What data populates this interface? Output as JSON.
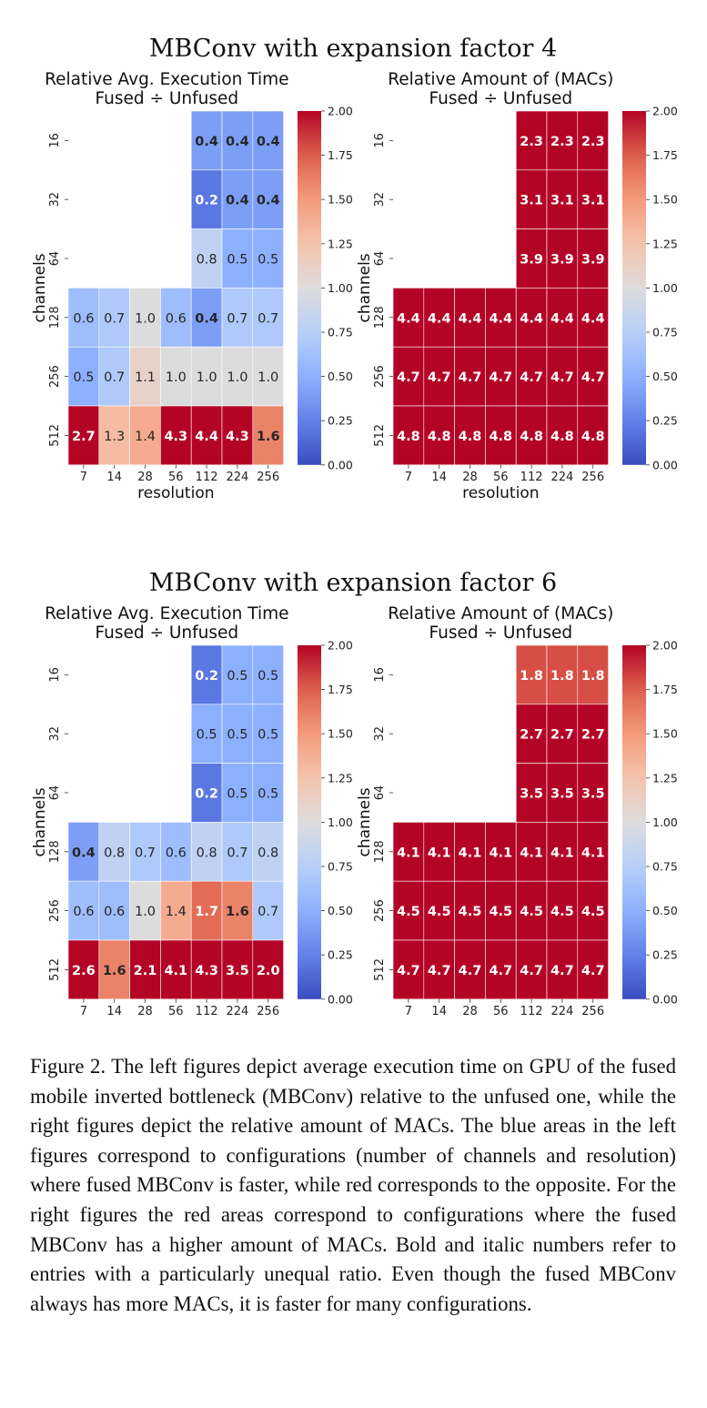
{
  "sections": [
    {
      "title": "MBConv with expansion factor 4"
    },
    {
      "title": "MBConv with expansion factor 6"
    }
  ],
  "chart_data": [
    {
      "type": "heatmap",
      "title": "Relative Avg. Execution Time\nFused ÷ Unfused",
      "section": 0,
      "xlabel": "resolution",
      "ylabel": "channels",
      "x_categories": [
        "7",
        "14",
        "28",
        "56",
        "112",
        "224",
        "256"
      ],
      "y_categories": [
        "16",
        "32",
        "64",
        "128",
        "256",
        "512"
      ],
      "values": [
        [
          null,
          null,
          null,
          null,
          0.4,
          0.4,
          0.4
        ],
        [
          null,
          null,
          null,
          null,
          0.2,
          0.4,
          0.4
        ],
        [
          null,
          null,
          null,
          null,
          0.8,
          0.5,
          0.5
        ],
        [
          0.6,
          0.7,
          1.0,
          0.6,
          0.4,
          0.7,
          0.7
        ],
        [
          0.5,
          0.7,
          1.1,
          1.0,
          1.0,
          1.0,
          1.0
        ],
        [
          2.7,
          1.3,
          1.4,
          4.3,
          4.4,
          4.3,
          1.6
        ]
      ],
      "bold": [
        [
          false,
          false,
          false,
          false,
          true,
          true,
          true
        ],
        [
          false,
          false,
          false,
          false,
          true,
          true,
          true
        ],
        [
          false,
          false,
          false,
          false,
          false,
          false,
          false
        ],
        [
          false,
          false,
          false,
          false,
          true,
          false,
          false
        ],
        [
          false,
          false,
          false,
          false,
          false,
          false,
          false
        ],
        [
          true,
          false,
          false,
          true,
          true,
          true,
          true
        ]
      ],
      "colorbar": {
        "min": 0.0,
        "max": 2.0,
        "ticks": [
          "0.00",
          "0.25",
          "0.50",
          "0.75",
          "1.00",
          "1.25",
          "1.50",
          "1.75",
          "2.00"
        ]
      },
      "colormap": "coolwarm"
    },
    {
      "type": "heatmap",
      "title": "Relative Amount of (MACs)\nFused ÷ Unfused",
      "section": 0,
      "xlabel": "resolution",
      "ylabel": "channels",
      "x_categories": [
        "7",
        "14",
        "28",
        "56",
        "112",
        "224",
        "256"
      ],
      "y_categories": [
        "16",
        "32",
        "64",
        "128",
        "256",
        "512"
      ],
      "values": [
        [
          null,
          null,
          null,
          null,
          2.3,
          2.3,
          2.3
        ],
        [
          null,
          null,
          null,
          null,
          3.1,
          3.1,
          3.1
        ],
        [
          null,
          null,
          null,
          null,
          3.9,
          3.9,
          3.9
        ],
        [
          4.4,
          4.4,
          4.4,
          4.4,
          4.4,
          4.4,
          4.4
        ],
        [
          4.7,
          4.7,
          4.7,
          4.7,
          4.7,
          4.7,
          4.7
        ],
        [
          4.8,
          4.8,
          4.8,
          4.8,
          4.8,
          4.8,
          4.8
        ]
      ],
      "bold": [
        [
          false,
          false,
          false,
          false,
          true,
          true,
          true
        ],
        [
          false,
          false,
          false,
          false,
          true,
          true,
          true
        ],
        [
          false,
          false,
          false,
          false,
          true,
          true,
          true
        ],
        [
          true,
          true,
          true,
          true,
          true,
          true,
          true
        ],
        [
          true,
          true,
          true,
          true,
          true,
          true,
          true
        ],
        [
          true,
          true,
          true,
          true,
          true,
          true,
          true
        ]
      ],
      "colorbar": {
        "min": 0.0,
        "max": 2.0,
        "ticks": [
          "0.00",
          "0.25",
          "0.50",
          "0.75",
          "1.00",
          "1.25",
          "1.50",
          "1.75",
          "2.00"
        ]
      },
      "colormap": "coolwarm"
    },
    {
      "type": "heatmap",
      "title": "Relative Avg. Execution Time\nFused ÷ Unfused",
      "section": 1,
      "xlabel": "resolution",
      "ylabel": "channels",
      "x_categories": [
        "7",
        "14",
        "28",
        "56",
        "112",
        "224",
        "256"
      ],
      "y_categories": [
        "16",
        "32",
        "64",
        "128",
        "256",
        "512"
      ],
      "values": [
        [
          null,
          null,
          null,
          null,
          0.2,
          0.5,
          0.5
        ],
        [
          null,
          null,
          null,
          null,
          0.5,
          0.5,
          0.5
        ],
        [
          null,
          null,
          null,
          null,
          0.2,
          0.5,
          0.5
        ],
        [
          0.4,
          0.8,
          0.7,
          0.6,
          0.8,
          0.7,
          0.8
        ],
        [
          0.6,
          0.6,
          1.0,
          1.4,
          1.7,
          1.6,
          0.7
        ],
        [
          2.6,
          1.6,
          2.1,
          4.1,
          4.3,
          3.5,
          2.0
        ]
      ],
      "bold": [
        [
          false,
          false,
          false,
          false,
          true,
          false,
          false
        ],
        [
          false,
          false,
          false,
          false,
          false,
          false,
          false
        ],
        [
          false,
          false,
          false,
          false,
          true,
          false,
          false
        ],
        [
          true,
          false,
          false,
          false,
          false,
          false,
          false
        ],
        [
          false,
          false,
          false,
          false,
          true,
          true,
          false
        ],
        [
          true,
          true,
          true,
          true,
          true,
          true,
          true
        ]
      ],
      "colorbar": {
        "min": 0.0,
        "max": 2.0,
        "ticks": [
          "0.00",
          "0.25",
          "0.50",
          "0.75",
          "1.00",
          "1.25",
          "1.50",
          "1.75",
          "2.00"
        ]
      },
      "colormap": "coolwarm"
    },
    {
      "type": "heatmap",
      "title": "Relative Amount of (MACs)\nFused ÷ Unfused",
      "section": 1,
      "xlabel": "resolution",
      "ylabel": "channels",
      "x_categories": [
        "7",
        "14",
        "28",
        "56",
        "112",
        "224",
        "256"
      ],
      "y_categories": [
        "16",
        "32",
        "64",
        "128",
        "256",
        "512"
      ],
      "values": [
        [
          null,
          null,
          null,
          null,
          1.8,
          1.8,
          1.8
        ],
        [
          null,
          null,
          null,
          null,
          2.7,
          2.7,
          2.7
        ],
        [
          null,
          null,
          null,
          null,
          3.5,
          3.5,
          3.5
        ],
        [
          4.1,
          4.1,
          4.1,
          4.1,
          4.1,
          4.1,
          4.1
        ],
        [
          4.5,
          4.5,
          4.5,
          4.5,
          4.5,
          4.5,
          4.5
        ],
        [
          4.7,
          4.7,
          4.7,
          4.7,
          4.7,
          4.7,
          4.7
        ]
      ],
      "bold": [
        [
          false,
          false,
          false,
          false,
          true,
          true,
          true
        ],
        [
          false,
          false,
          false,
          false,
          true,
          true,
          true
        ],
        [
          false,
          false,
          false,
          false,
          true,
          true,
          true
        ],
        [
          true,
          true,
          true,
          true,
          true,
          true,
          true
        ],
        [
          true,
          true,
          true,
          true,
          true,
          true,
          true
        ],
        [
          true,
          true,
          true,
          true,
          true,
          true,
          true
        ]
      ],
      "colorbar": {
        "min": 0.0,
        "max": 2.0,
        "ticks": [
          "0.00",
          "0.25",
          "0.50",
          "0.75",
          "1.00",
          "1.25",
          "1.50",
          "1.75",
          "2.00"
        ]
      },
      "colormap": "coolwarm"
    }
  ],
  "caption": "Figure 2. The left figures depict average execution time on GPU of the fused mobile inverted bottleneck (MBConv) relative to the unfused one, while the right figures depict the relative amount of MACs. The blue areas in the left figures correspond to configurations (number of channels and resolution) where fused MBConv is faster, while red corresponds to the opposite. For the right figures the red areas correspond to configurations where the fused MBConv has a higher amount of MACs. Bold and italic numbers refer to entries with a particularly unequal ratio. Even though the fused MBConv always has more MACs, it is faster for many configurations."
}
